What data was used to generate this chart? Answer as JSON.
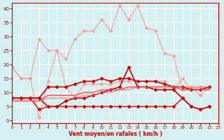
{
  "xlabel": "Vent moyen/en rafales ( km/h )",
  "xlim": [
    0,
    23
  ],
  "ylim": [
    -1,
    42
  ],
  "yticks": [
    0,
    5,
    10,
    15,
    20,
    25,
    30,
    35,
    40
  ],
  "xticks": [
    0,
    1,
    2,
    3,
    4,
    5,
    6,
    7,
    8,
    9,
    10,
    11,
    12,
    13,
    14,
    15,
    16,
    17,
    18,
    19,
    20,
    21,
    22,
    23
  ],
  "bg_color": "#d4f0f0",
  "grid_color": "#ffffff",
  "lines": [
    {
      "y": [
        19,
        15,
        15,
        1,
        14,
        25,
        12,
        8,
        13,
        13,
        13,
        13,
        14,
        14,
        14,
        14,
        14,
        14,
        11,
        15,
        11,
        12,
        12
      ],
      "color": "#ff9999",
      "marker": "D",
      "markersize": 2,
      "linewidth": 1.0,
      "alpha": 0.8
    },
    {
      "y": [
        19,
        15,
        15,
        29,
        25,
        25,
        22,
        29,
        32,
        32,
        36,
        32,
        41,
        36,
        41,
        33,
        32,
        24,
        23,
        11,
        12,
        9,
        12
      ],
      "color": "#ff9999",
      "marker": "D",
      "markersize": 2,
      "linewidth": 1.0,
      "alpha": 0.8
    },
    {
      "y": [
        8,
        8,
        8,
        8,
        12,
        12,
        12,
        13,
        14,
        14,
        15,
        14,
        15,
        15,
        14,
        14,
        14,
        13,
        12,
        12,
        11,
        11,
        12
      ],
      "color": "#cc0000",
      "marker": "D",
      "markersize": 2,
      "linewidth": 1.2,
      "alpha": 1.0
    },
    {
      "y": [
        8,
        8,
        8,
        8,
        5,
        5,
        7,
        8,
        8,
        9,
        10,
        11,
        12,
        19,
        12,
        12,
        11,
        11,
        11,
        8,
        5,
        4,
        5
      ],
      "color": "#cc0000",
      "marker": "D",
      "markersize": 2,
      "linewidth": 1.2,
      "alpha": 1.0
    },
    {
      "y": [
        8,
        8,
        8,
        4,
        5,
        5,
        5,
        5,
        5,
        5,
        5,
        5,
        5,
        5,
        5,
        5,
        5,
        5,
        5,
        8,
        5,
        4,
        5
      ],
      "color": "#dd0000",
      "marker": "D",
      "markersize": 2,
      "linewidth": 1.0,
      "alpha": 1.0
    },
    {
      "y": [
        7,
        7,
        7,
        7,
        9,
        9,
        9,
        9,
        10,
        10,
        11,
        11,
        11,
        12,
        12,
        12,
        12,
        12,
        12,
        11,
        11,
        11,
        11
      ],
      "color": "#ff4444",
      "marker": null,
      "markersize": 0,
      "linewidth": 1.2,
      "alpha": 0.85
    },
    {
      "y": [
        7,
        7,
        7,
        7,
        8,
        8,
        8,
        8,
        9,
        9,
        10,
        10,
        11,
        11,
        12,
        12,
        12,
        12,
        12,
        12,
        12,
        12,
        12
      ],
      "color": "#ff6666",
      "marker": null,
      "markersize": 0,
      "linewidth": 1.0,
      "alpha": 0.7
    }
  ]
}
